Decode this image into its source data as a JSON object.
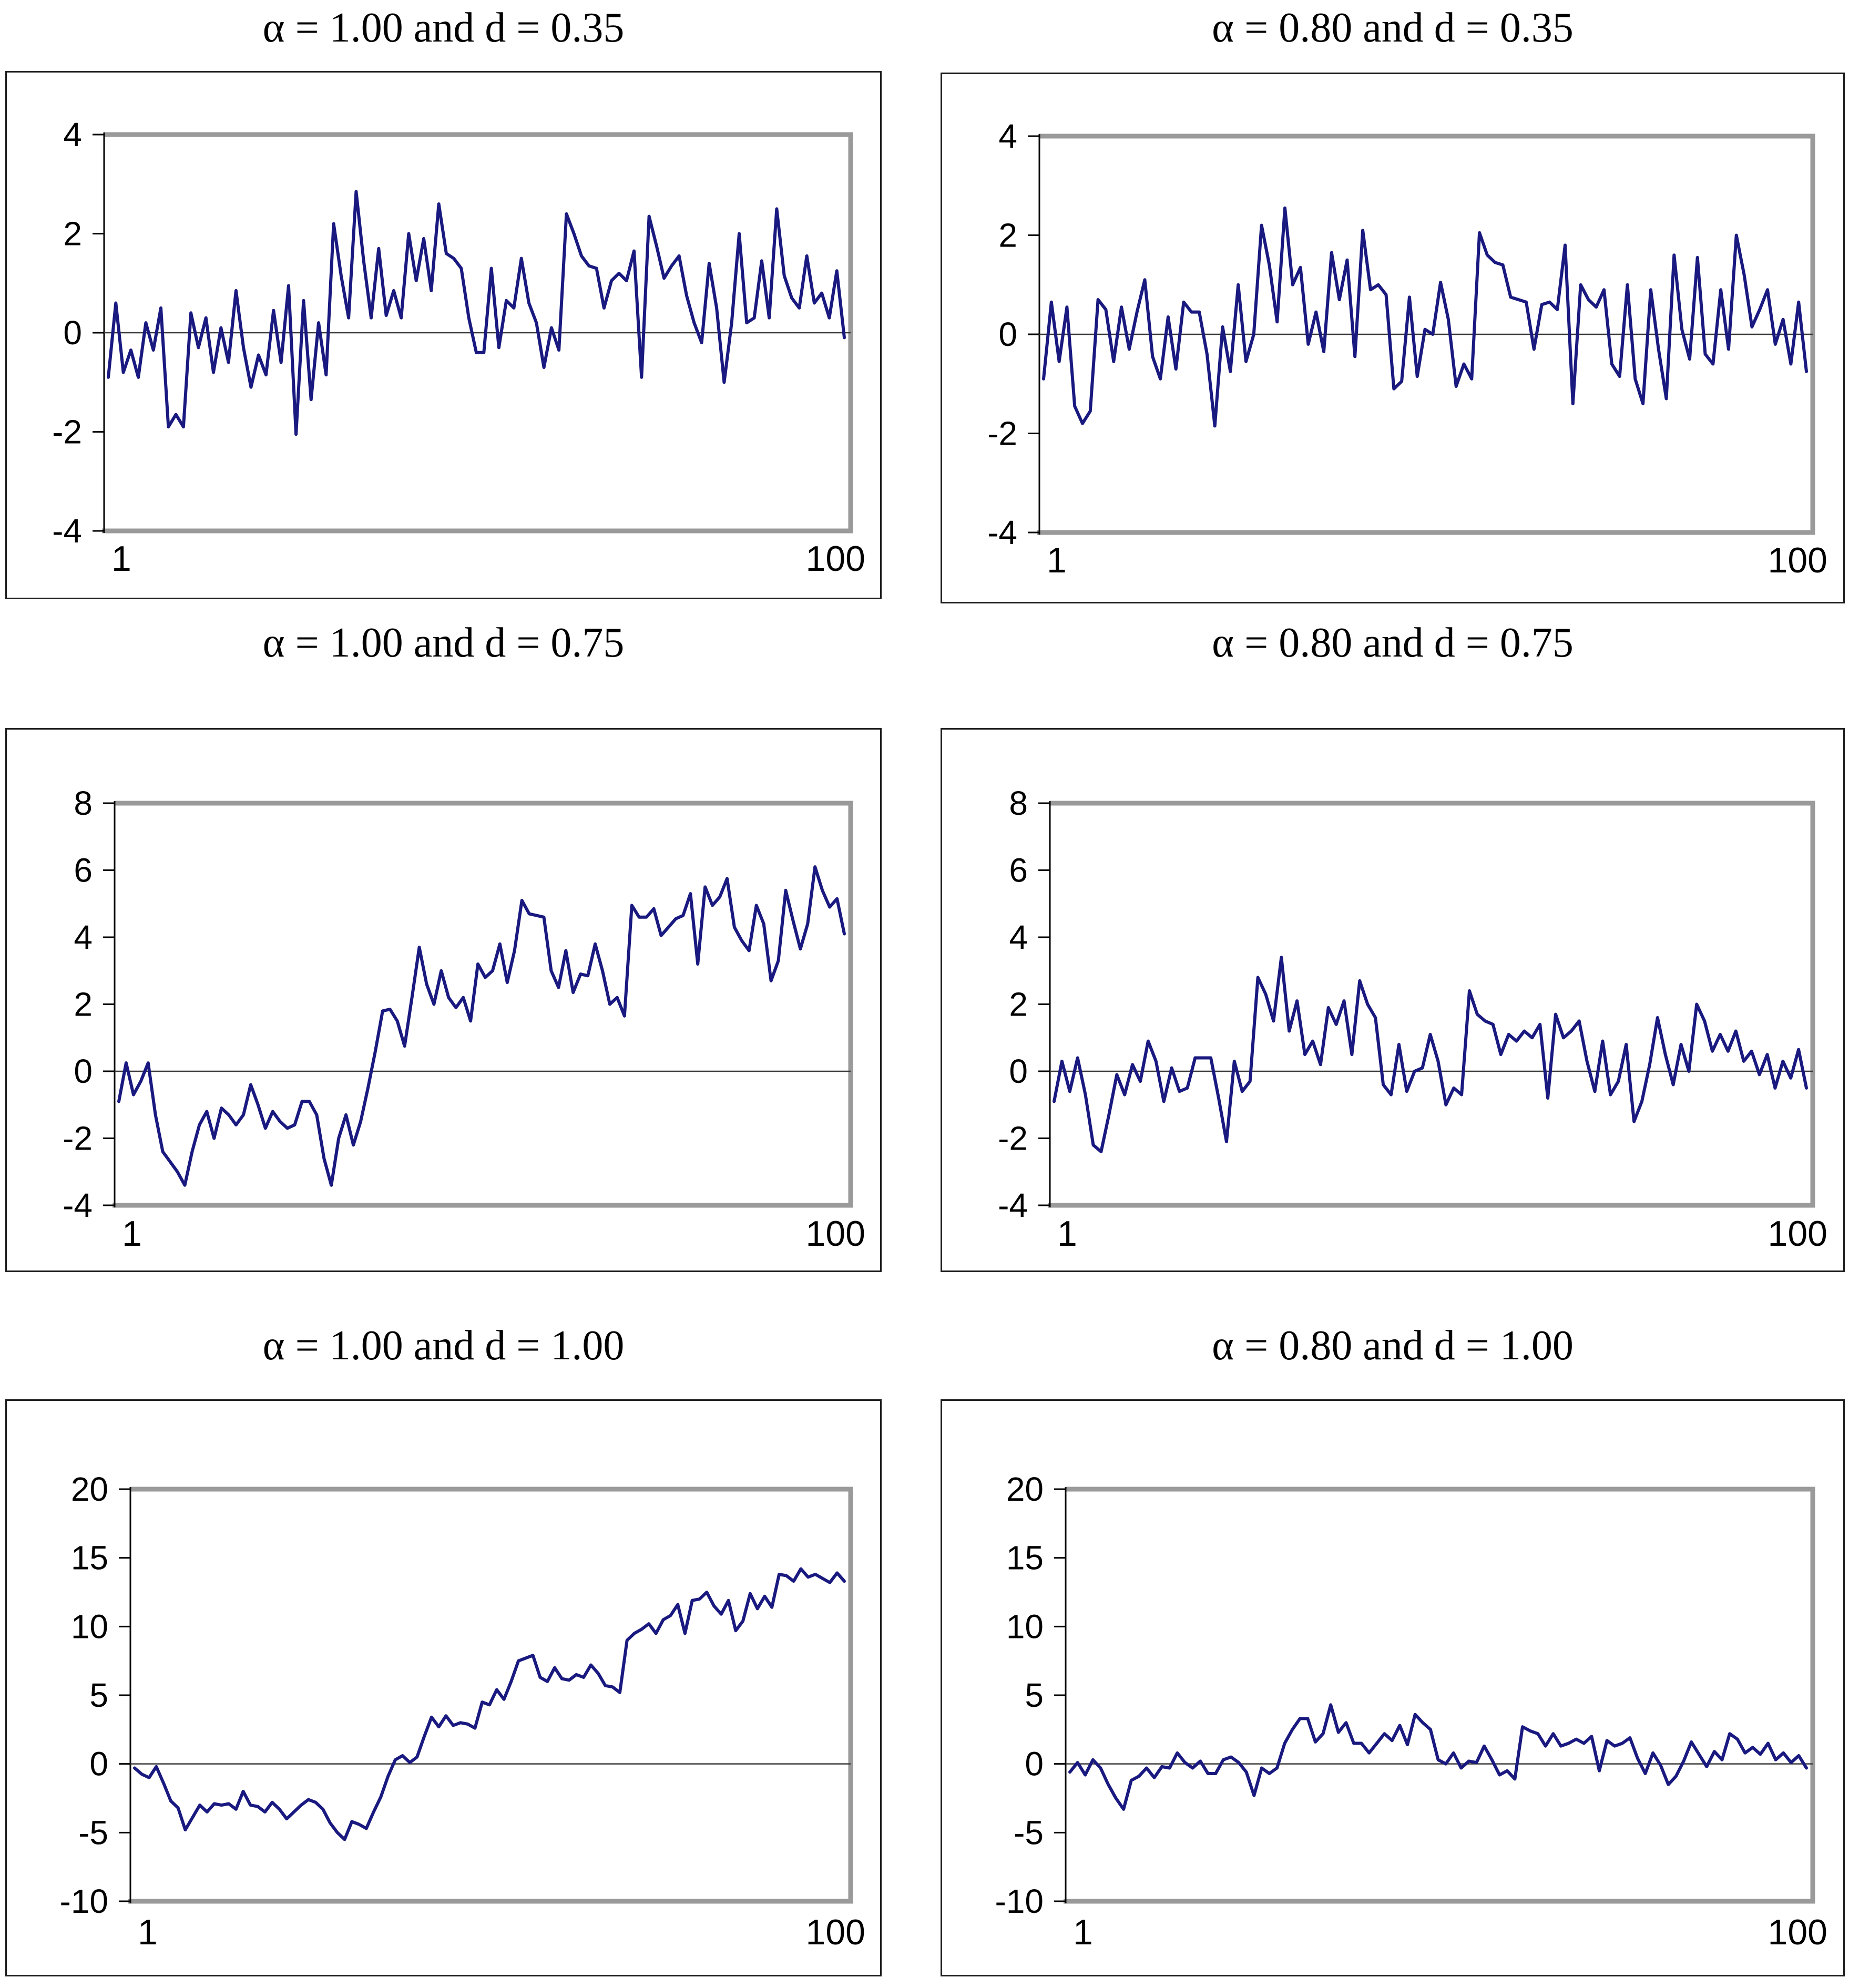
{
  "style": {
    "line_color": "#191980",
    "plot_border_color": "#9a9a9a",
    "axis_color": "#000000",
    "zero_line_color": "#3a3a3a",
    "box_border_color": "#1f1f1f",
    "background": "#ffffff"
  },
  "chart_data": [
    {
      "type": "line",
      "title": "α = 1.00 and d = 0.35",
      "xlabel": "",
      "ylabel": "",
      "xtick_labels": [
        "1",
        "100"
      ],
      "x_range": [
        1,
        100
      ],
      "ylim": [
        -4,
        4
      ],
      "yticks": [
        4,
        2,
        0,
        -2,
        -4
      ],
      "grid": false,
      "legend": "none",
      "values": [
        -0.9,
        0.6,
        -0.8,
        -0.35,
        -0.9,
        0.2,
        -0.35,
        0.5,
        -1.9,
        -1.65,
        -1.9,
        0.4,
        -0.3,
        0.3,
        -0.8,
        0.1,
        -0.6,
        0.85,
        -0.3,
        -1.1,
        -0.45,
        -0.85,
        0.45,
        -0.6,
        0.95,
        -2.05,
        0.65,
        -1.35,
        0.2,
        -0.85,
        2.2,
        1.15,
        0.3,
        2.85,
        1.45,
        0.3,
        1.7,
        0.35,
        0.85,
        0.3,
        2.0,
        1.05,
        1.9,
        0.85,
        2.6,
        1.6,
        1.5,
        1.3,
        0.3,
        -0.4,
        -0.4,
        1.3,
        -0.3,
        0.65,
        0.5,
        1.5,
        0.6,
        0.2,
        -0.7,
        0.1,
        -0.35,
        2.4,
        2.0,
        1.55,
        1.35,
        1.3,
        0.5,
        1.05,
        1.2,
        1.05,
        1.65,
        -0.9,
        2.35,
        1.75,
        1.1,
        1.35,
        1.55,
        0.75,
        0.2,
        -0.2,
        1.4,
        0.5,
        -1.0,
        0.2,
        2.0,
        0.2,
        0.3,
        1.45,
        0.3,
        2.5,
        1.15,
        0.7,
        0.5,
        1.55,
        0.6,
        0.8,
        0.3,
        1.25,
        -0.1
      ]
    },
    {
      "type": "line",
      "title": "α = 0.80 and d = 0.35",
      "xlabel": "",
      "ylabel": "",
      "xtick_labels": [
        "1",
        "100"
      ],
      "x_range": [
        1,
        100
      ],
      "ylim": [
        -4,
        4
      ],
      "yticks": [
        4,
        2,
        0,
        -2,
        -4
      ],
      "grid": false,
      "legend": "none",
      "values": [
        -0.9,
        0.65,
        -0.55,
        0.55,
        -1.45,
        -1.8,
        -1.55,
        0.7,
        0.5,
        -0.55,
        0.55,
        -0.3,
        0.45,
        1.1,
        -0.45,
        -0.9,
        0.35,
        -0.7,
        0.65,
        0.45,
        0.45,
        -0.4,
        -1.85,
        0.15,
        -0.75,
        1.0,
        -0.55,
        0.0,
        2.2,
        1.4,
        0.25,
        2.55,
        1.0,
        1.35,
        -0.2,
        0.45,
        -0.35,
        1.65,
        0.7,
        1.5,
        -0.45,
        2.1,
        0.9,
        1.0,
        0.8,
        -1.1,
        -0.95,
        0.75,
        -0.85,
        0.1,
        0.0,
        1.05,
        0.3,
        -1.05,
        -0.6,
        -0.9,
        2.05,
        1.6,
        1.45,
        1.4,
        0.75,
        0.7,
        0.65,
        -0.3,
        0.6,
        0.65,
        0.5,
        1.8,
        -1.4,
        1.0,
        0.7,
        0.55,
        0.9,
        -0.6,
        -0.85,
        1.0,
        -0.9,
        -1.4,
        0.9,
        -0.3,
        -1.3,
        1.6,
        0.1,
        -0.5,
        1.55,
        -0.4,
        -0.6,
        0.9,
        -0.3,
        2.0,
        1.2,
        0.15,
        0.5,
        0.9,
        -0.2,
        0.3,
        -0.6,
        0.65,
        -0.75
      ]
    },
    {
      "type": "line",
      "title": "α = 1.00 and d = 0.75",
      "xlabel": "",
      "ylabel": "",
      "xtick_labels": [
        "1",
        "100"
      ],
      "x_range": [
        1,
        100
      ],
      "ylim": [
        -4,
        8
      ],
      "yticks": [
        8,
        6,
        4,
        2,
        0,
        -2,
        -4
      ],
      "grid": false,
      "legend": "none",
      "values": [
        -0.9,
        0.25,
        -0.7,
        -0.3,
        0.25,
        -1.3,
        -2.4,
        -2.7,
        -3.0,
        -3.4,
        -2.4,
        -1.6,
        -1.2,
        -2.0,
        -1.1,
        -1.3,
        -1.6,
        -1.3,
        -0.4,
        -1.0,
        -1.7,
        -1.2,
        -1.5,
        -1.7,
        -1.6,
        -0.9,
        -0.9,
        -1.3,
        -2.6,
        -3.4,
        -2.0,
        -1.3,
        -2.2,
        -1.5,
        -0.5,
        0.6,
        1.8,
        1.85,
        1.5,
        0.75,
        2.2,
        3.7,
        2.6,
        2.0,
        3.0,
        2.2,
        1.9,
        2.2,
        1.5,
        3.2,
        2.8,
        3.0,
        3.8,
        2.65,
        3.6,
        5.1,
        4.7,
        4.65,
        4.6,
        3.0,
        2.5,
        3.6,
        2.35,
        2.9,
        2.85,
        3.8,
        3.0,
        2.0,
        2.2,
        1.65,
        4.95,
        4.6,
        4.6,
        4.85,
        4.05,
        4.3,
        4.55,
        4.65,
        5.3,
        3.2,
        5.5,
        4.95,
        5.2,
        5.75,
        4.3,
        3.9,
        3.6,
        4.95,
        4.4,
        2.7,
        3.3,
        5.4,
        4.5,
        3.65,
        4.4,
        6.1,
        5.4,
        4.9,
        5.15,
        4.1
      ]
    },
    {
      "type": "line",
      "title": "α = 0.80 and d = 0.75",
      "xlabel": "",
      "ylabel": "",
      "xtick_labels": [
        "1",
        "100"
      ],
      "x_range": [
        1,
        100
      ],
      "ylim": [
        -4,
        8
      ],
      "yticks": [
        8,
        6,
        4,
        2,
        0,
        -2,
        -4
      ],
      "grid": false,
      "legend": "none",
      "values": [
        -0.9,
        0.3,
        -0.6,
        0.4,
        -0.7,
        -2.2,
        -2.4,
        -1.3,
        -0.1,
        -0.7,
        0.2,
        -0.3,
        0.9,
        0.3,
        -0.9,
        0.1,
        -0.6,
        -0.5,
        0.4,
        0.4,
        0.4,
        -0.8,
        -2.1,
        0.3,
        -0.6,
        -0.3,
        2.8,
        2.3,
        1.5,
        3.4,
        1.2,
        2.1,
        0.5,
        0.9,
        0.2,
        1.9,
        1.4,
        2.1,
        0.5,
        2.7,
        2.0,
        1.6,
        -0.4,
        -0.7,
        0.8,
        -0.6,
        0.0,
        0.1,
        1.1,
        0.3,
        -1.0,
        -0.5,
        -0.7,
        2.4,
        1.7,
        1.5,
        1.4,
        0.5,
        1.1,
        0.9,
        1.2,
        1.0,
        1.4,
        -0.8,
        1.7,
        1.0,
        1.2,
        1.5,
        0.3,
        -0.6,
        0.9,
        -0.7,
        -0.3,
        0.8,
        -1.5,
        -0.9,
        0.2,
        1.6,
        0.5,
        -0.4,
        0.8,
        0.0,
        2.0,
        1.5,
        0.6,
        1.1,
        0.6,
        1.2,
        0.3,
        0.6,
        -0.1,
        0.5,
        -0.5,
        0.3,
        -0.2,
        0.65,
        -0.5
      ]
    },
    {
      "type": "line",
      "title": "α = 1.00 and d = 1.00",
      "xlabel": "",
      "ylabel": "",
      "xtick_labels": [
        "1",
        "100"
      ],
      "x_range": [
        1,
        100
      ],
      "ylim": [
        -10,
        20
      ],
      "yticks": [
        20,
        15,
        10,
        5,
        0,
        -5,
        -10
      ],
      "grid": false,
      "legend": "none",
      "values": [
        -0.3,
        -0.75,
        -1.0,
        -0.2,
        -1.4,
        -2.7,
        -3.2,
        -4.8,
        -3.9,
        -3.0,
        -3.5,
        -2.9,
        -3.0,
        -2.9,
        -3.3,
        -2.0,
        -3.0,
        -3.1,
        -3.5,
        -2.8,
        -3.3,
        -4.0,
        -3.5,
        -3.0,
        -2.6,
        -2.8,
        -3.3,
        -4.3,
        -5.0,
        -5.5,
        -4.2,
        -4.4,
        -4.7,
        -3.5,
        -2.4,
        -0.9,
        0.3,
        0.6,
        0.1,
        0.5,
        2.0,
        3.4,
        2.7,
        3.5,
        2.8,
        3.0,
        2.9,
        2.6,
        4.5,
        4.3,
        5.4,
        4.7,
        6.0,
        7.5,
        7.7,
        7.9,
        6.3,
        6.0,
        7.0,
        6.2,
        6.1,
        6.5,
        6.3,
        7.2,
        6.6,
        5.7,
        5.6,
        5.2,
        9.0,
        9.5,
        9.8,
        10.2,
        9.5,
        10.5,
        10.8,
        11.6,
        9.5,
        11.9,
        12.0,
        12.5,
        11.5,
        10.9,
        11.9,
        9.7,
        10.4,
        12.4,
        11.3,
        12.2,
        11.4,
        13.8,
        13.7,
        13.3,
        14.2,
        13.6,
        13.8,
        13.5,
        13.2,
        13.9,
        13.3
      ]
    },
    {
      "type": "line",
      "title": "α = 0.80 and d = 1.00",
      "xlabel": "",
      "ylabel": "",
      "xtick_labels": [
        "1",
        "100"
      ],
      "x_range": [
        1,
        100
      ],
      "ylim": [
        -10,
        20
      ],
      "yticks": [
        20,
        15,
        10,
        5,
        0,
        -5,
        -10
      ],
      "grid": false,
      "legend": "none",
      "values": [
        -0.6,
        0.1,
        -0.8,
        0.3,
        -0.3,
        -1.5,
        -2.5,
        -3.3,
        -1.2,
        -0.9,
        -0.3,
        -1.0,
        -0.2,
        -0.3,
        0.8,
        0.1,
        -0.3,
        0.2,
        -0.7,
        -0.7,
        0.3,
        0.5,
        0.1,
        -0.6,
        -2.3,
        -0.3,
        -0.7,
        -0.3,
        1.5,
        2.5,
        3.3,
        3.3,
        1.6,
        2.2,
        4.3,
        2.3,
        3.0,
        1.5,
        1.5,
        0.8,
        1.5,
        2.2,
        1.7,
        2.8,
        1.4,
        3.6,
        3.0,
        2.5,
        0.3,
        0.0,
        0.8,
        -0.3,
        0.2,
        0.1,
        1.3,
        0.3,
        -0.8,
        -0.5,
        -1.1,
        2.7,
        2.4,
        2.2,
        1.3,
        2.2,
        1.3,
        1.5,
        1.8,
        1.5,
        2.0,
        -0.5,
        1.7,
        1.3,
        1.5,
        1.9,
        0.4,
        -0.7,
        0.8,
        -0.1,
        -1.5,
        -0.9,
        0.2,
        1.6,
        0.7,
        -0.2,
        0.9,
        0.3,
        2.2,
        1.8,
        0.8,
        1.2,
        0.7,
        1.5,
        0.3,
        0.8,
        0.1,
        0.6,
        -0.3
      ]
    }
  ]
}
